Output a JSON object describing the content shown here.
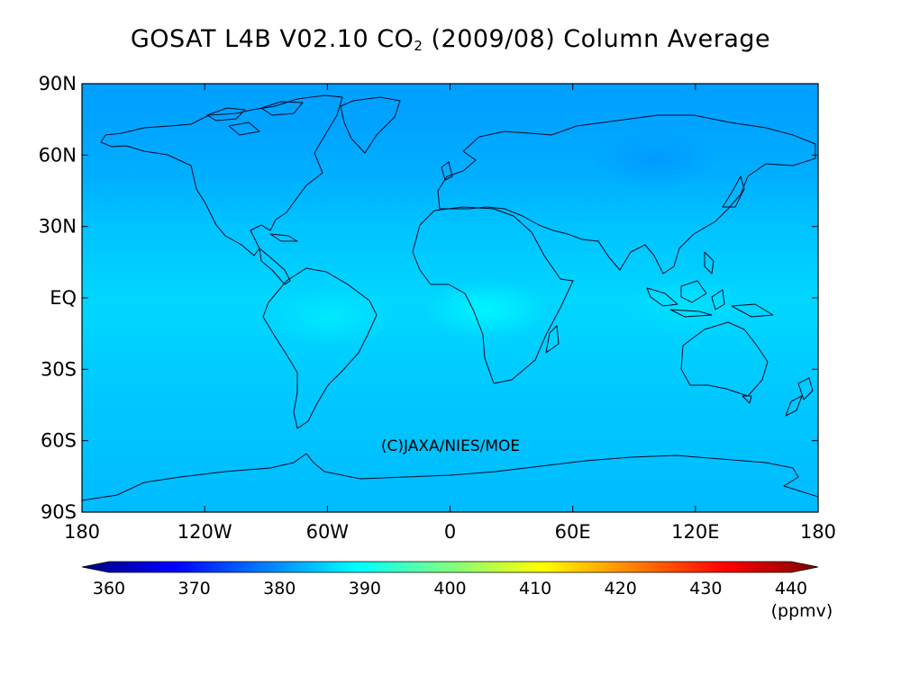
{
  "title": {
    "prefix": "GOSAT L4B V02.10 CO",
    "subscript": "2",
    "suffix": " (2009/08) Column Average"
  },
  "credit": "(C)JAXA/NIES/MOE",
  "map": {
    "projection": "equirectangular",
    "lon_range": [
      -180,
      180
    ],
    "lat_range": [
      -90,
      90
    ],
    "lat_ticks": [
      {
        "value": 90,
        "label": "90N"
      },
      {
        "value": 60,
        "label": "60N"
      },
      {
        "value": 30,
        "label": "30N"
      },
      {
        "value": 0,
        "label": "EQ"
      },
      {
        "value": -30,
        "label": "30S"
      },
      {
        "value": -60,
        "label": "60S"
      },
      {
        "value": -90,
        "label": "90S"
      }
    ],
    "lon_ticks": [
      {
        "value": -180,
        "label": "180"
      },
      {
        "value": -120,
        "label": "120W"
      },
      {
        "value": -60,
        "label": "60W"
      },
      {
        "value": 0,
        "label": "0"
      },
      {
        "value": 60,
        "label": "60E"
      },
      {
        "value": 120,
        "label": "120E"
      },
      {
        "value": 180,
        "label": "180"
      }
    ],
    "field_bands": [
      {
        "lat": 90,
        "value": 382.5
      },
      {
        "lat": 70,
        "value": 383.0
      },
      {
        "lat": 50,
        "value": 383.8
      },
      {
        "lat": 30,
        "value": 385.3
      },
      {
        "lat": 15,
        "value": 386.0
      },
      {
        "lat": 0,
        "value": 386.8
      },
      {
        "lat": -15,
        "value": 386.6
      },
      {
        "lat": -30,
        "value": 386.0
      },
      {
        "lat": -45,
        "value": 385.6
      },
      {
        "lat": -60,
        "value": 385.3
      },
      {
        "lat": -75,
        "value": 385.0
      },
      {
        "lat": -90,
        "value": 384.8
      }
    ],
    "field_spots": [
      {
        "lon": 18,
        "lat": -5,
        "value": 389.5
      },
      {
        "lon": -58,
        "lat": -8,
        "value": 388.5
      },
      {
        "lon": 115,
        "lat": -3,
        "value": 387.8
      },
      {
        "lon": 100,
        "lat": 58,
        "value": 382.0
      }
    ]
  },
  "colorbar": {
    "min": 360,
    "max": 440,
    "ticks": [
      360,
      370,
      380,
      390,
      400,
      410,
      420,
      430,
      440
    ],
    "tick_labels": [
      "360",
      "370",
      "380",
      "390",
      "400",
      "410",
      "420",
      "430",
      "440"
    ],
    "unit": "(ppmv)",
    "extend": "both",
    "colormap": [
      "#00007f",
      "#0000ff",
      "#007fff",
      "#00ffff",
      "#7fff7f",
      "#ffff00",
      "#ff7f00",
      "#ff0000",
      "#7f0000"
    ]
  }
}
